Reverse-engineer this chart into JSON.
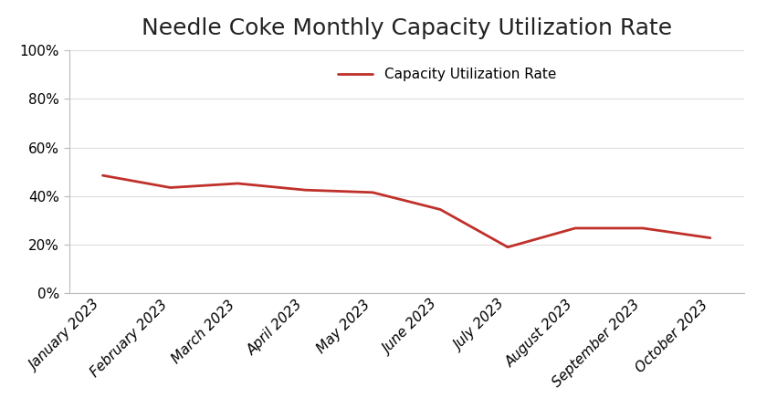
{
  "title": "Needle Coke Monthly Capacity Utilization Rate",
  "categories": [
    "January 2023",
    "February 2023",
    "March 2023",
    "April 2023",
    "May 2023",
    "June 2023",
    "July 2023",
    "August 2023",
    "September 2023",
    "October 2023"
  ],
  "values": [
    0.485,
    0.435,
    0.452,
    0.425,
    0.415,
    0.345,
    0.19,
    0.268,
    0.268,
    0.228
  ],
  "line_color": "#C0302A",
  "line_width": 2.0,
  "legend_label": "Capacity Utilization Rate",
  "ylim": [
    0,
    1.0
  ],
  "yticks": [
    0,
    0.2,
    0.4,
    0.6,
    0.8,
    1.0
  ],
  "ytick_labels": [
    "0%",
    "20%",
    "40%",
    "60%",
    "80%",
    "100%"
  ],
  "background_color": "#ffffff",
  "title_fontsize": 18,
  "tick_fontsize": 11,
  "legend_fontsize": 11,
  "spine_color": "#bbbbbb",
  "grid_color": "#dddddd"
}
